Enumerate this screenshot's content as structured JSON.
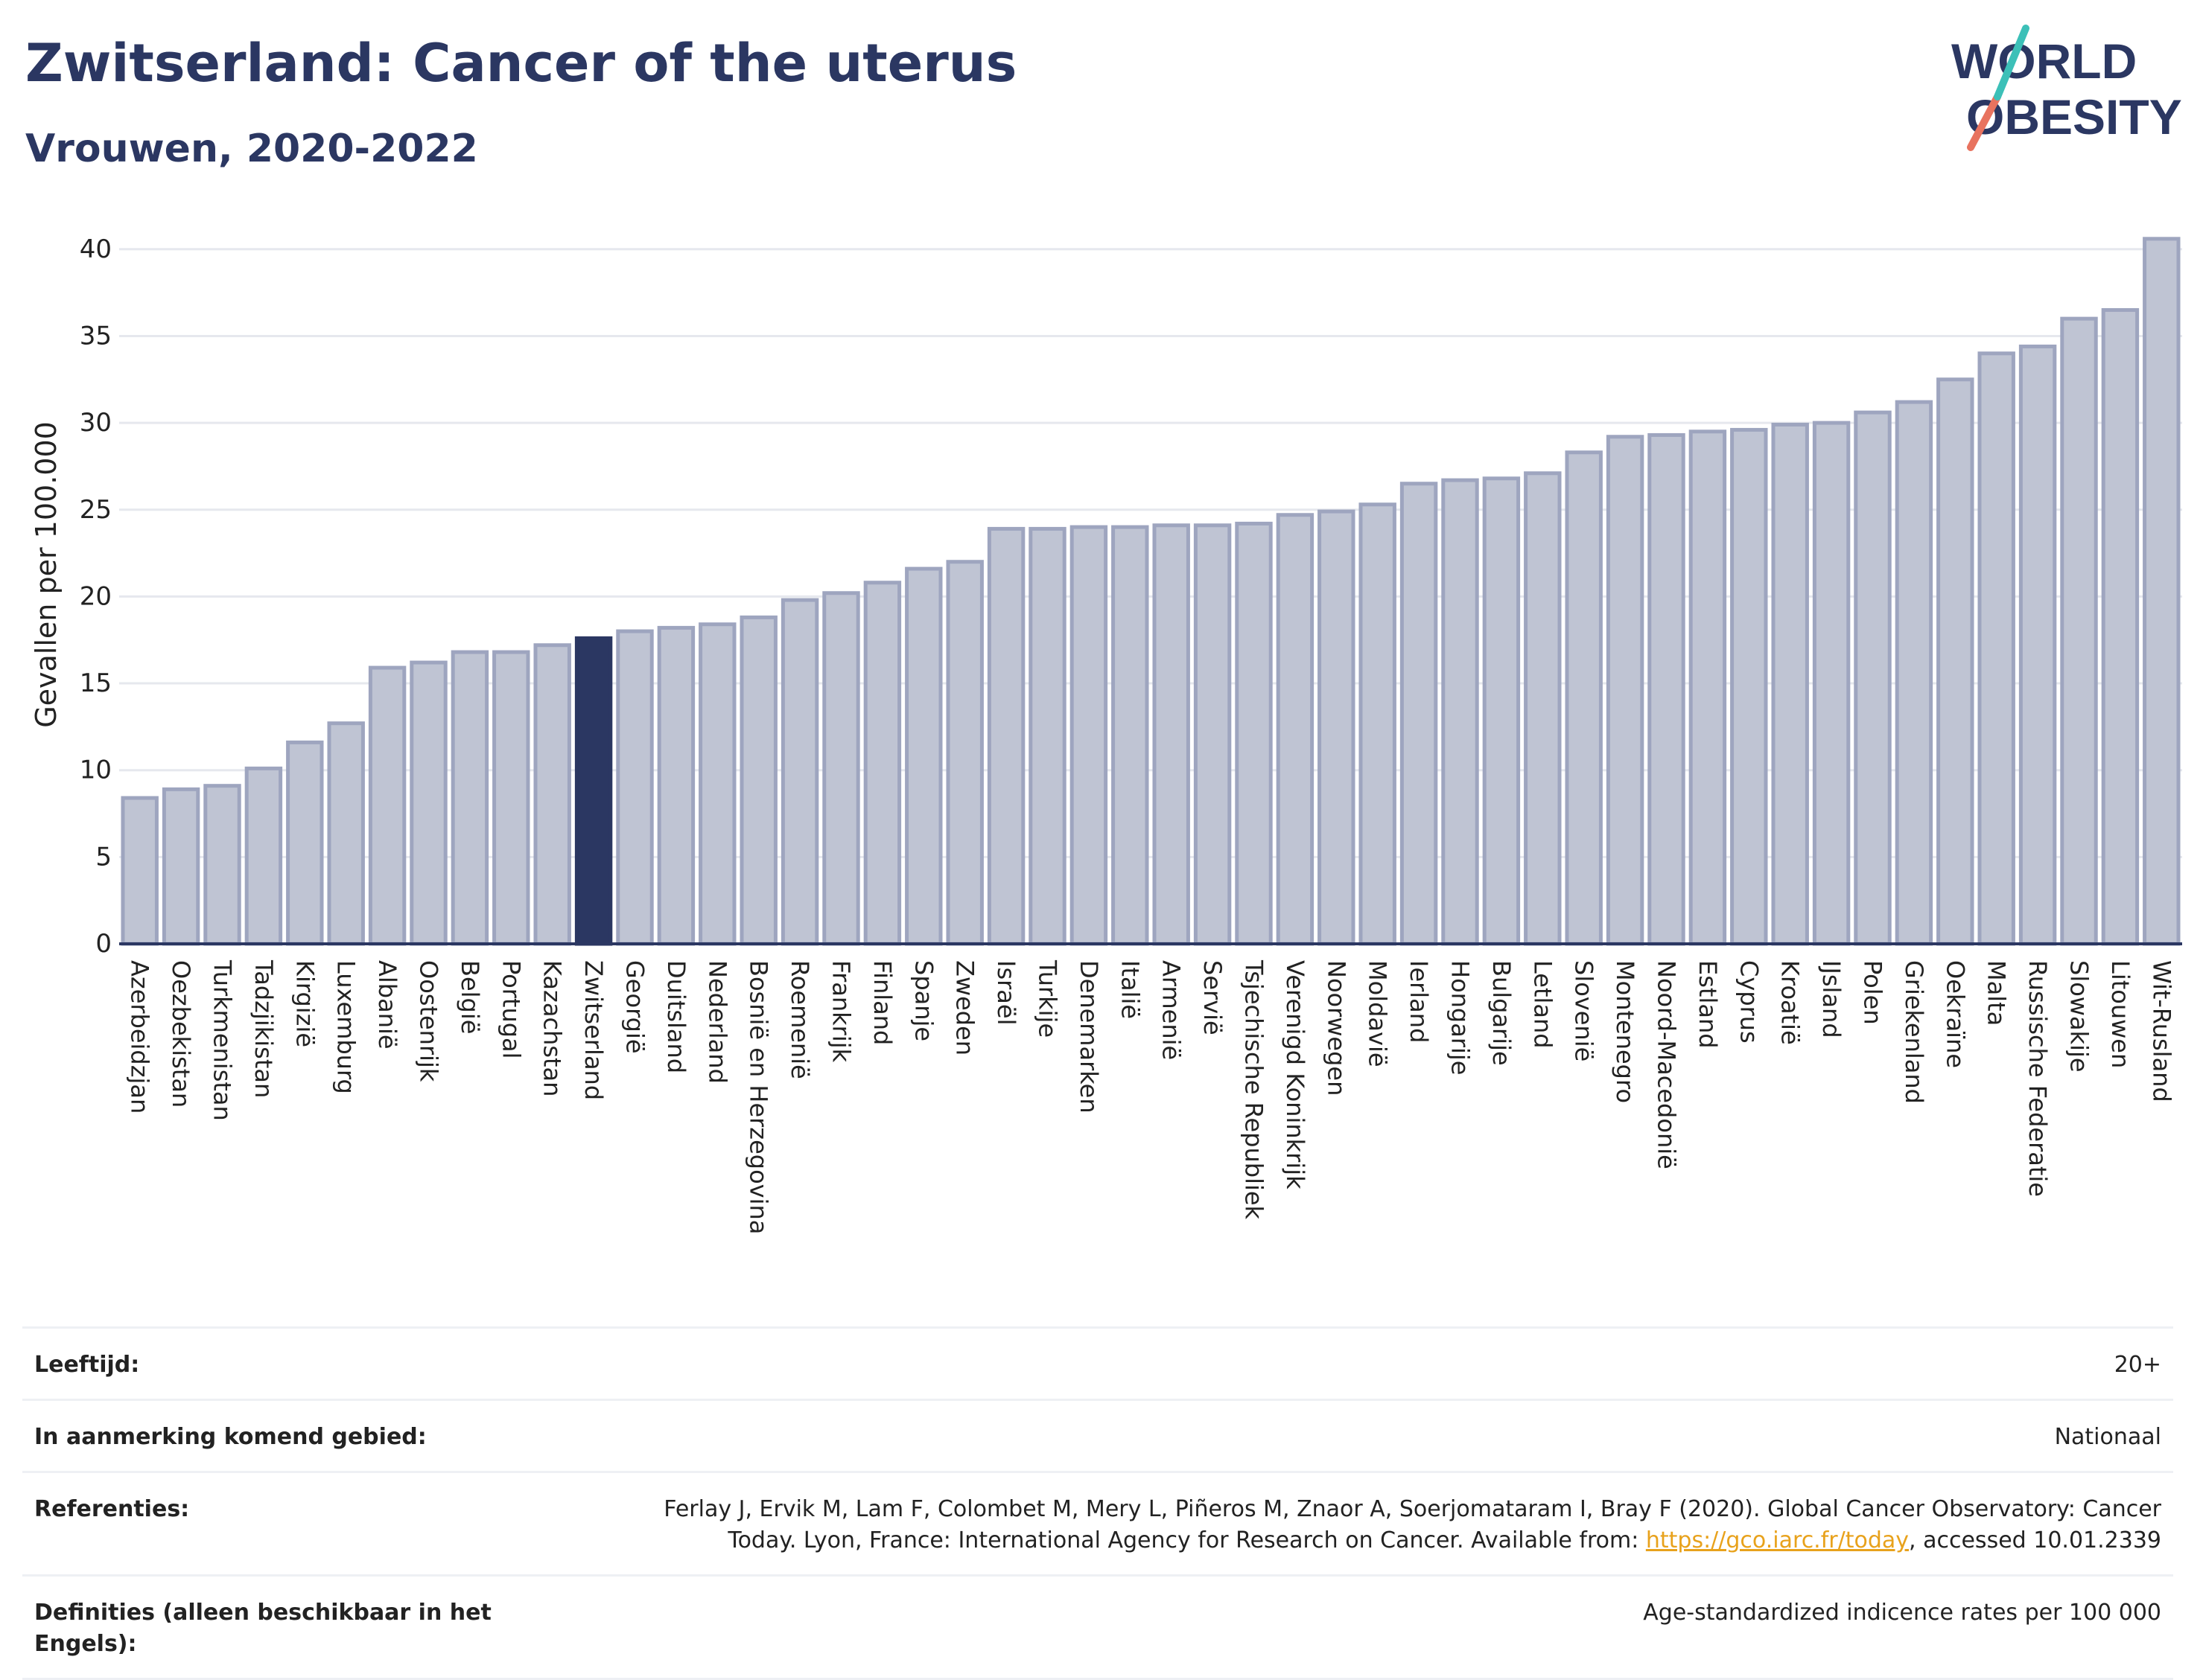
{
  "header": {
    "title": "Zwitserland: Cancer of the uterus",
    "subtitle": "Vrouwen, 2020-2022"
  },
  "logo": {
    "line1": "WORLD",
    "line2": "OBESITY"
  },
  "chart_data": {
    "type": "bar",
    "ylabel": "Gevallen per 100.000",
    "xlabel": "",
    "ylim": [
      0,
      42
    ],
    "yticks": [
      0,
      5,
      10,
      15,
      20,
      25,
      30,
      35,
      40
    ],
    "grid": true,
    "highlight": "Zwitserland",
    "colors": {
      "bar": "#bfc4d3",
      "bar_stroke": "#9ea5bf",
      "highlight": "#2b3762",
      "grid": "#e6e8ee"
    },
    "categories": [
      "Azerbeidzjan",
      "Oezbekistan",
      "Turkmenistan",
      "Tadzjikistan",
      "Kirgizië",
      "Luxemburg",
      "Albanië",
      "Oostenrijk",
      "België",
      "Portugal",
      "Kazachstan",
      "Zwitserland",
      "Georgië",
      "Duitsland",
      "Nederland",
      "Bosnië en Herzegovina",
      "Roemenië",
      "Frankrijk",
      "Finland",
      "Spanje",
      "Zweden",
      "Israël",
      "Turkije",
      "Denemarken",
      "Italië",
      "Armenië",
      "Servië",
      "Tsjechische Republiek",
      "Verenigd Koninkrijk",
      "Noorwegen",
      "Moldavië",
      "Ierland",
      "Hongarije",
      "Bulgarije",
      "Letland",
      "Slovenië",
      "Montenegro",
      "Noord-Macedonië",
      "Estland",
      "Cyprus",
      "Kroatië",
      "IJsland",
      "Polen",
      "Griekenland",
      "Oekraïne",
      "Malta",
      "Russische Federatie",
      "Slowakije",
      "Litouwen",
      "Wit-Rusland"
    ],
    "values": [
      8.4,
      8.9,
      9.1,
      10.1,
      11.6,
      12.7,
      15.9,
      16.2,
      16.8,
      16.8,
      17.2,
      17.6,
      18.0,
      18.2,
      18.4,
      18.8,
      19.8,
      20.2,
      20.8,
      21.6,
      22.0,
      23.9,
      23.9,
      24.0,
      24.0,
      24.1,
      24.1,
      24.2,
      24.7,
      24.9,
      25.3,
      26.5,
      26.7,
      26.8,
      27.1,
      28.3,
      29.2,
      29.3,
      29.5,
      29.6,
      29.9,
      30.0,
      30.6,
      31.2,
      32.5,
      34.0,
      34.4,
      36.0,
      36.5,
      40.6
    ]
  },
  "info": {
    "age_label": "Leeftijd:",
    "age_value": "20+",
    "area_label": "In aanmerking komend gebied:",
    "area_value": "Nationaal",
    "ref_label": "Referenties:",
    "ref_text": "Ferlay J, Ervik M, Lam F, Colombet M, Mery L, Piñeros M, Znaor A, Soerjomataram I, Bray F (2020). Global Cancer Observatory: Cancer Today. Lyon, France: International Agency for Research on Cancer. Available from: ",
    "ref_link": "https://gco.iarc.fr/today",
    "ref_tail": ", accessed 10.01.2339",
    "def_label": "Definities (alleen beschikbaar in het Engels):",
    "def_value": "Age-standardized indicence rates per 100 000"
  }
}
